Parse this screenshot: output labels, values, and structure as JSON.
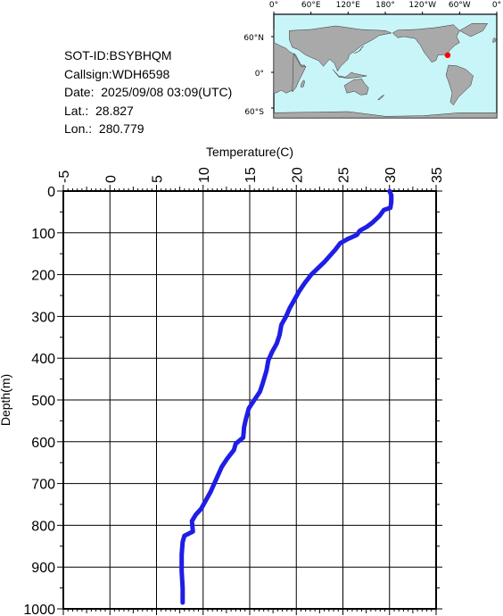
{
  "info": {
    "sot_id": "SOT-ID:BSYBHQM",
    "callsign": "Callsign:WDH6598",
    "date": "Date:  2025/09/08 03:09(UTC)",
    "lat": "Lat.:  28.827",
    "lon": "Lon.:  280.779"
  },
  "map": {
    "lon_labels": [
      "0°",
      "60°E",
      "120°E",
      "180°",
      "120°W",
      "60°W",
      "0°"
    ],
    "lat_labels": [
      "60°N",
      "0°",
      "60°S"
    ],
    "ocean_color": "#c8f5f8",
    "land_color": "#a9a9a9",
    "marker_color": "#ff0000",
    "marker_lat": 28.827,
    "marker_lon": 280.779
  },
  "chart_data": {
    "type": "line",
    "xlabel": "Temperature(C)",
    "ylabel": "Depth(m)",
    "xlim": [
      -5,
      35
    ],
    "ylim": [
      1000,
      0
    ],
    "x_ticks": [
      "-5",
      "0",
      "5",
      "10",
      "15",
      "20",
      "25",
      "30",
      "35"
    ],
    "y_ticks": [
      "0",
      "100",
      "200",
      "300",
      "400",
      "500",
      "600",
      "700",
      "800",
      "900",
      "1000"
    ],
    "grid": true,
    "series": [
      {
        "color": "#1e1ee6",
        "points": [
          {
            "t": 30.0,
            "d": 0
          },
          {
            "t": 30.2,
            "d": 10
          },
          {
            "t": 30.2,
            "d": 25
          },
          {
            "t": 30.1,
            "d": 40
          },
          {
            "t": 29.4,
            "d": 45
          },
          {
            "t": 28.9,
            "d": 60
          },
          {
            "t": 28.2,
            "d": 75
          },
          {
            "t": 27.6,
            "d": 85
          },
          {
            "t": 26.8,
            "d": 95
          },
          {
            "t": 26.5,
            "d": 105
          },
          {
            "t": 25.5,
            "d": 115
          },
          {
            "t": 24.7,
            "d": 125
          },
          {
            "t": 24.2,
            "d": 140
          },
          {
            "t": 23.6,
            "d": 155
          },
          {
            "t": 23.0,
            "d": 170
          },
          {
            "t": 22.3,
            "d": 185
          },
          {
            "t": 21.6,
            "d": 200
          },
          {
            "t": 20.9,
            "d": 220
          },
          {
            "t": 20.3,
            "d": 240
          },
          {
            "t": 19.8,
            "d": 260
          },
          {
            "t": 19.3,
            "d": 280
          },
          {
            "t": 18.9,
            "d": 300
          },
          {
            "t": 18.4,
            "d": 320
          },
          {
            "t": 18.2,
            "d": 345
          },
          {
            "t": 17.9,
            "d": 365
          },
          {
            "t": 17.4,
            "d": 385
          },
          {
            "t": 17.0,
            "d": 405
          },
          {
            "t": 16.8,
            "d": 430
          },
          {
            "t": 16.4,
            "d": 460
          },
          {
            "t": 16.1,
            "d": 480
          },
          {
            "t": 15.5,
            "d": 500
          },
          {
            "t": 14.9,
            "d": 520
          },
          {
            "t": 14.6,
            "d": 545
          },
          {
            "t": 14.4,
            "d": 565
          },
          {
            "t": 14.3,
            "d": 590
          },
          {
            "t": 13.5,
            "d": 605
          },
          {
            "t": 13.3,
            "d": 620
          },
          {
            "t": 12.6,
            "d": 640
          },
          {
            "t": 12.0,
            "d": 660
          },
          {
            "t": 11.6,
            "d": 680
          },
          {
            "t": 11.2,
            "d": 700
          },
          {
            "t": 10.8,
            "d": 720
          },
          {
            "t": 10.3,
            "d": 740
          },
          {
            "t": 9.8,
            "d": 760
          },
          {
            "t": 9.2,
            "d": 775
          },
          {
            "t": 8.8,
            "d": 790
          },
          {
            "t": 8.9,
            "d": 815
          },
          {
            "t": 8.0,
            "d": 825
          },
          {
            "t": 7.8,
            "d": 840
          },
          {
            "t": 7.7,
            "d": 870
          },
          {
            "t": 7.7,
            "d": 910
          },
          {
            "t": 7.8,
            "d": 950
          },
          {
            "t": 7.8,
            "d": 985
          }
        ]
      }
    ]
  }
}
